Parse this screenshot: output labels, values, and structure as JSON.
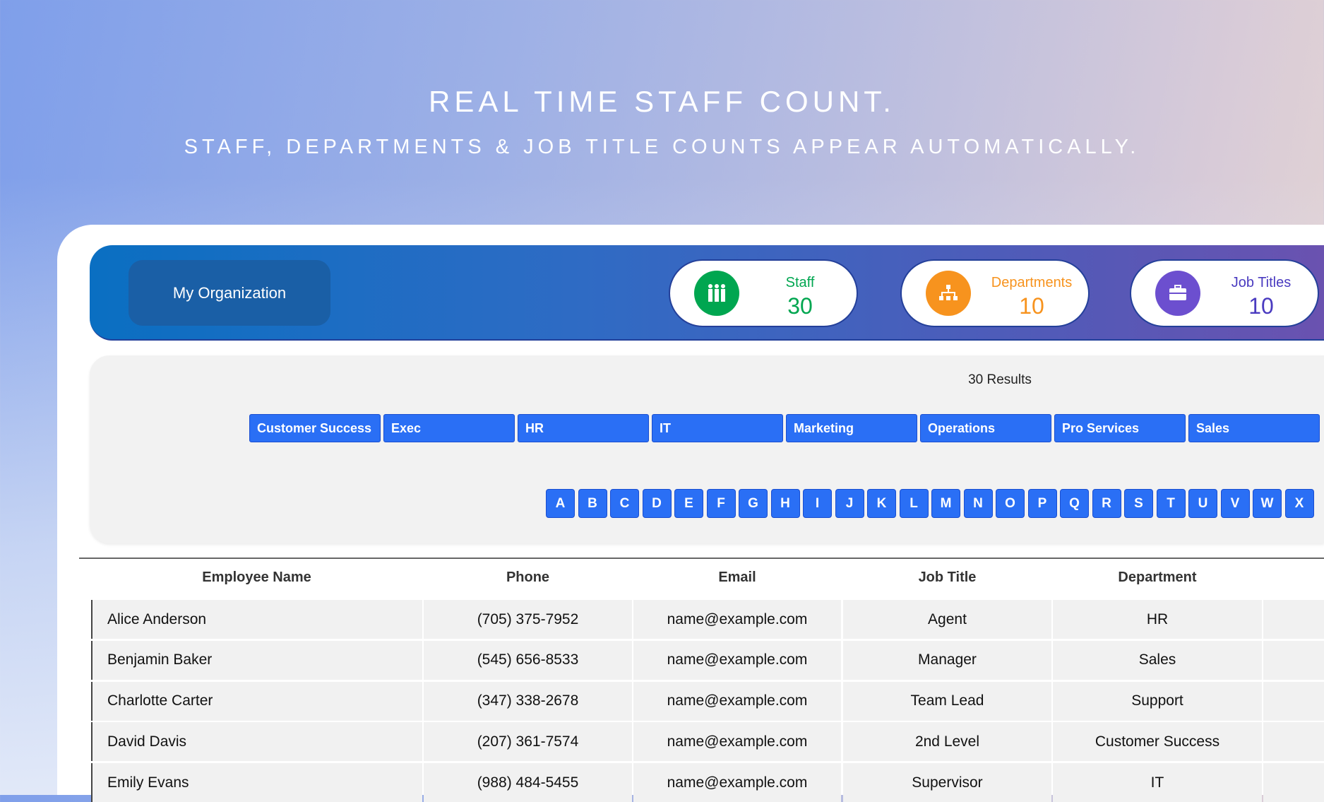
{
  "hero": {
    "title": "REAL TIME STAFF COUNT.",
    "subtitle": "STAFF, DEPARTMENTS & JOB TITLE COUNTS APPEAR AUTOMATICALLY."
  },
  "header": {
    "org_name": "My Organization",
    "stats": [
      {
        "label": "Staff",
        "value": "30",
        "color": "#00a650",
        "icon": "people-icon"
      },
      {
        "label": "Departments",
        "value": "10",
        "color": "#f7931e",
        "icon": "org-chart-icon"
      },
      {
        "label": "Job Titles",
        "value": "10",
        "color": "#6c4fcf",
        "icon": "briefcase-icon"
      }
    ]
  },
  "filters": {
    "results": "30 Results",
    "departments": [
      "Customer Success",
      "Exec",
      "HR",
      "IT",
      "Marketing",
      "Operations",
      "Pro Services",
      "Sales"
    ],
    "letters": [
      "A",
      "B",
      "C",
      "D",
      "E",
      "F",
      "G",
      "H",
      "I",
      "J",
      "K",
      "L",
      "M",
      "N",
      "O",
      "P",
      "Q",
      "R",
      "S",
      "T",
      "U",
      "V",
      "W",
      "X"
    ]
  },
  "table": {
    "columns": [
      "Employee Name",
      "Phone",
      "Email",
      "Job Title",
      "Department"
    ],
    "rows": [
      [
        "Alice Anderson",
        "(705) 375-7952",
        "name@example.com",
        "Agent",
        "HR"
      ],
      [
        "Benjamin Baker",
        "(545) 656-8533",
        "name@example.com",
        "Manager",
        "Sales"
      ],
      [
        "Charlotte Carter",
        "(347) 338-2678",
        "name@example.com",
        "Team Lead",
        "Support"
      ],
      [
        "David Davis",
        "(207) 361-7574",
        "name@example.com",
        "2nd Level",
        "Customer Success"
      ],
      [
        "Emily Evans",
        "(988) 484-5455",
        "name@example.com",
        "Supervisor",
        "IT"
      ]
    ]
  }
}
